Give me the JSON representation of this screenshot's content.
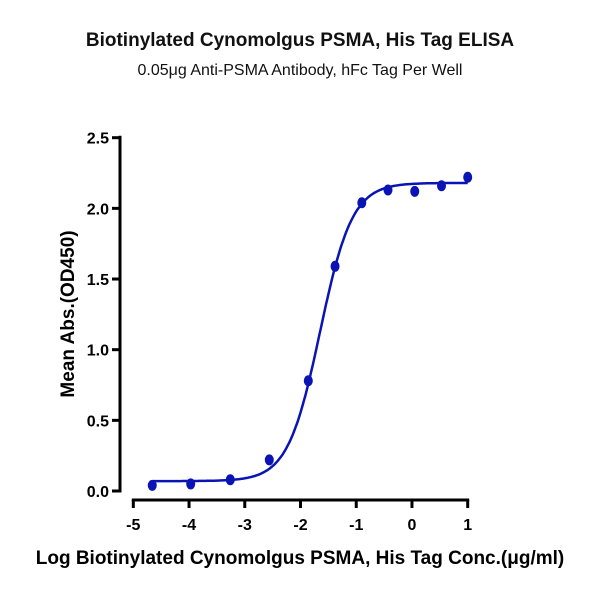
{
  "chart_data": {
    "type": "scatter",
    "title": "Biotinylated Cynomolgus PSMA, His Tag ELISA",
    "subtitle": "0.05μg Anti-PSMA Antibody, hFc Tag Per Well",
    "xlabel": "Log Biotinylated Cynomolgus PSMA, His Tag Conc.(μg/ml)",
    "ylabel": "Mean Abs.(OD450)",
    "xlim": [
      -5,
      1
    ],
    "ylim": [
      0,
      2.5
    ],
    "xticks": [
      "-5",
      "-4",
      "-3",
      "-2",
      "-1",
      "0",
      "1"
    ],
    "yticks": [
      "0.0",
      "0.5",
      "1.0",
      "1.5",
      "2.0",
      "2.5"
    ],
    "grid": false,
    "color": "#0a14b4",
    "series": [
      {
        "x": [
          -4.66,
          -3.97,
          -3.26,
          -2.56,
          -1.86,
          -1.38,
          -0.9,
          -0.43,
          0.05,
          0.53,
          1.0
        ],
        "y": [
          0.04,
          0.05,
          0.08,
          0.22,
          0.78,
          1.59,
          2.04,
          2.13,
          2.12,
          2.16,
          2.22
        ]
      }
    ],
    "fit": {
      "type": "4PL",
      "bottom": 0.07,
      "top": 2.18,
      "logEC50": -1.65,
      "hill": 1.5
    }
  }
}
